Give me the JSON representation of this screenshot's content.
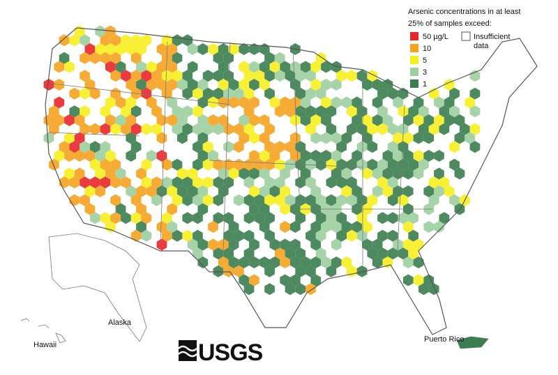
{
  "legend": {
    "title_lines": [
      "Arsenic concentrations in at least",
      "25% of samples exceed:"
    ],
    "items": [
      {
        "label": "50 µg/L",
        "color": "#e8262a"
      },
      {
        "label": "10",
        "color": "#f5a21f"
      },
      {
        "label": "5",
        "color": "#f7ee1e"
      },
      {
        "label": "3",
        "color": "#9ccf9f"
      },
      {
        "label": "1",
        "color": "#3a7d4e"
      }
    ],
    "insufficient_lines": [
      "Insufficient",
      "data"
    ]
  },
  "labels": {
    "alaska": "Alaska",
    "hawaii": "Hawaii",
    "puerto_rico": "Puerto Rico"
  },
  "logo": "USGS"
}
